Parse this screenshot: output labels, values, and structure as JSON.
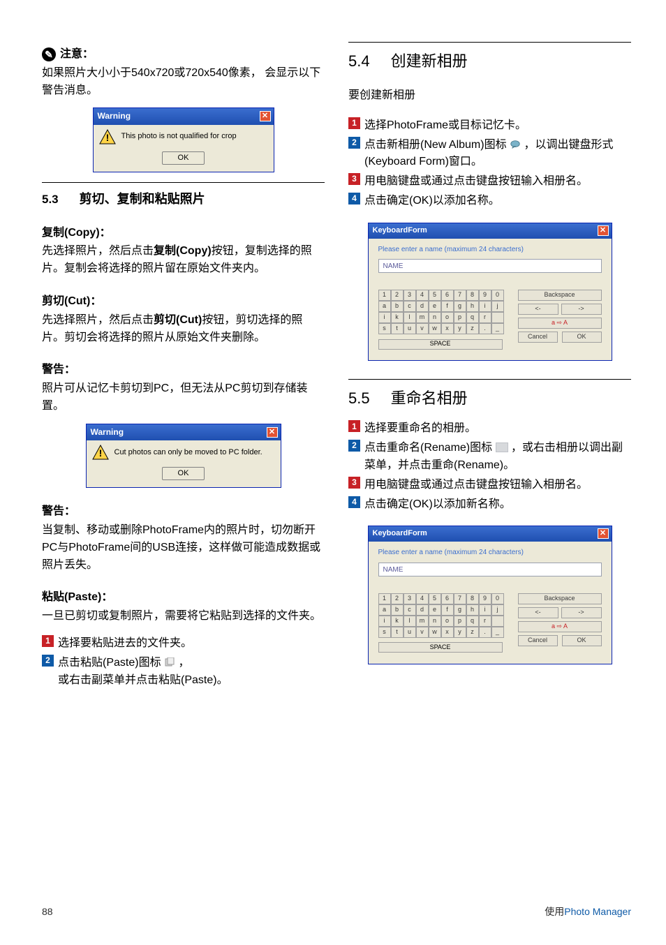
{
  "colors": {
    "red_box": "#c72126",
    "blue_box": "#0e5aa7",
    "blue_text": "#0e5aa7",
    "titlebar_top": "#3b6ecf",
    "titlebar_bottom": "#1f4fb0",
    "dialog_bg": "#ece9d8",
    "key_bg": "#e7e4d6"
  },
  "left": {
    "note_label": "注意：",
    "note_body": "如果照片大小小于540x720或720x540像素， 会显示以下警告消息。",
    "warn1": {
      "title": "Warning",
      "msg": "This photo is not qualified for crop",
      "ok": "OK"
    },
    "s53_num": "5.3",
    "s53_title": "剪切、复制和粘贴照片",
    "copy_head": "复制(Copy)：",
    "copy_body": "先选择照片，然后点击复制(Copy)按钮，复制选择的照片。复制会将选择的照片留在原始文件夹内。",
    "cut_head": "剪切(Cut)：",
    "cut_body": "先选择照片，然后点击剪切(Cut)按钮，剪切选择的照片。剪切会将选择的照片从原始文件夹删除。",
    "warn_head1": "警告：",
    "warn_body1": "照片可从记忆卡剪切到PC，但无法从PC剪切到存储装置。",
    "warn2": {
      "title": "Warning",
      "msg": "Cut photos can only be moved to PC folder.",
      "ok": "OK"
    },
    "warn_head2": "警告：",
    "warn_body2": "当复制、移动或删除PhotoFrame内的照片时，切勿断开PC与PhotoFrame间的USB连接，这样做可能造成数据或照片丢失。",
    "paste_head": "粘贴(Paste)：",
    "paste_body": "一旦已剪切或复制照片，需要将它粘贴到选择的文件夹。",
    "paste_steps": {
      "s1": "选择要粘贴进去的文件夹。",
      "s2a": "点击粘贴(Paste)图标 ",
      "s2b": "，",
      "s2c": "或右击副菜单并点击粘贴(Paste)。"
    }
  },
  "right": {
    "s54_num": "5.4",
    "s54_title": "创建新相册",
    "s54_intro": "要创建新相册",
    "s54_steps": {
      "s1": "选择PhotoFrame或目标记忆卡。",
      "s2a": "点击新相册(New Album)图标",
      "s2b": "，以调出键盘形式(Keyboard Form)窗口。",
      "s3": "用电脑键盘或通过点击键盘按钮输入相册名。",
      "s4": "点击确定(OK)以添加名称。"
    },
    "kb": {
      "title": "KeyboardForm",
      "prompt": "Please enter a name (maximum 24 characters)",
      "input_value": "NAME",
      "row1": [
        "1",
        "2",
        "3",
        "4",
        "5",
        "6",
        "7",
        "8",
        "9",
        "0"
      ],
      "row2": [
        "a",
        "b",
        "c",
        "d",
        "e",
        "f",
        "g",
        "h",
        "i",
        "j"
      ],
      "row3": [
        "i",
        "k",
        "l",
        "m",
        "n",
        "o",
        "p",
        "q",
        "r",
        " "
      ],
      "row4": [
        "s",
        "t",
        "u",
        "v",
        "w",
        "x",
        "y",
        "z",
        ".",
        "_"
      ],
      "space": "SPACE",
      "backspace": "Backspace",
      "left": "<-",
      "right_arrow": "->",
      "shift": "a ⇨ A",
      "cancel": "Cancel",
      "ok": "OK"
    },
    "s55_num": "5.5",
    "s55_title": "重命名相册",
    "s55_steps": {
      "s1": "选择要重命名的相册。",
      "s2a": "点击重命名(Rename)图标 ",
      "s2b": " ，或右击相册以调出副菜单，并点击重命(Rename)。",
      "s3": "用电脑键盘或通过点击键盘按钮输入相册名。",
      "s4": "点击确定(OK)以添加新名称。"
    }
  },
  "footer": {
    "page": "88",
    "rlabel_prefix": "使用",
    "rlabel_blue": "Photo Manager"
  }
}
